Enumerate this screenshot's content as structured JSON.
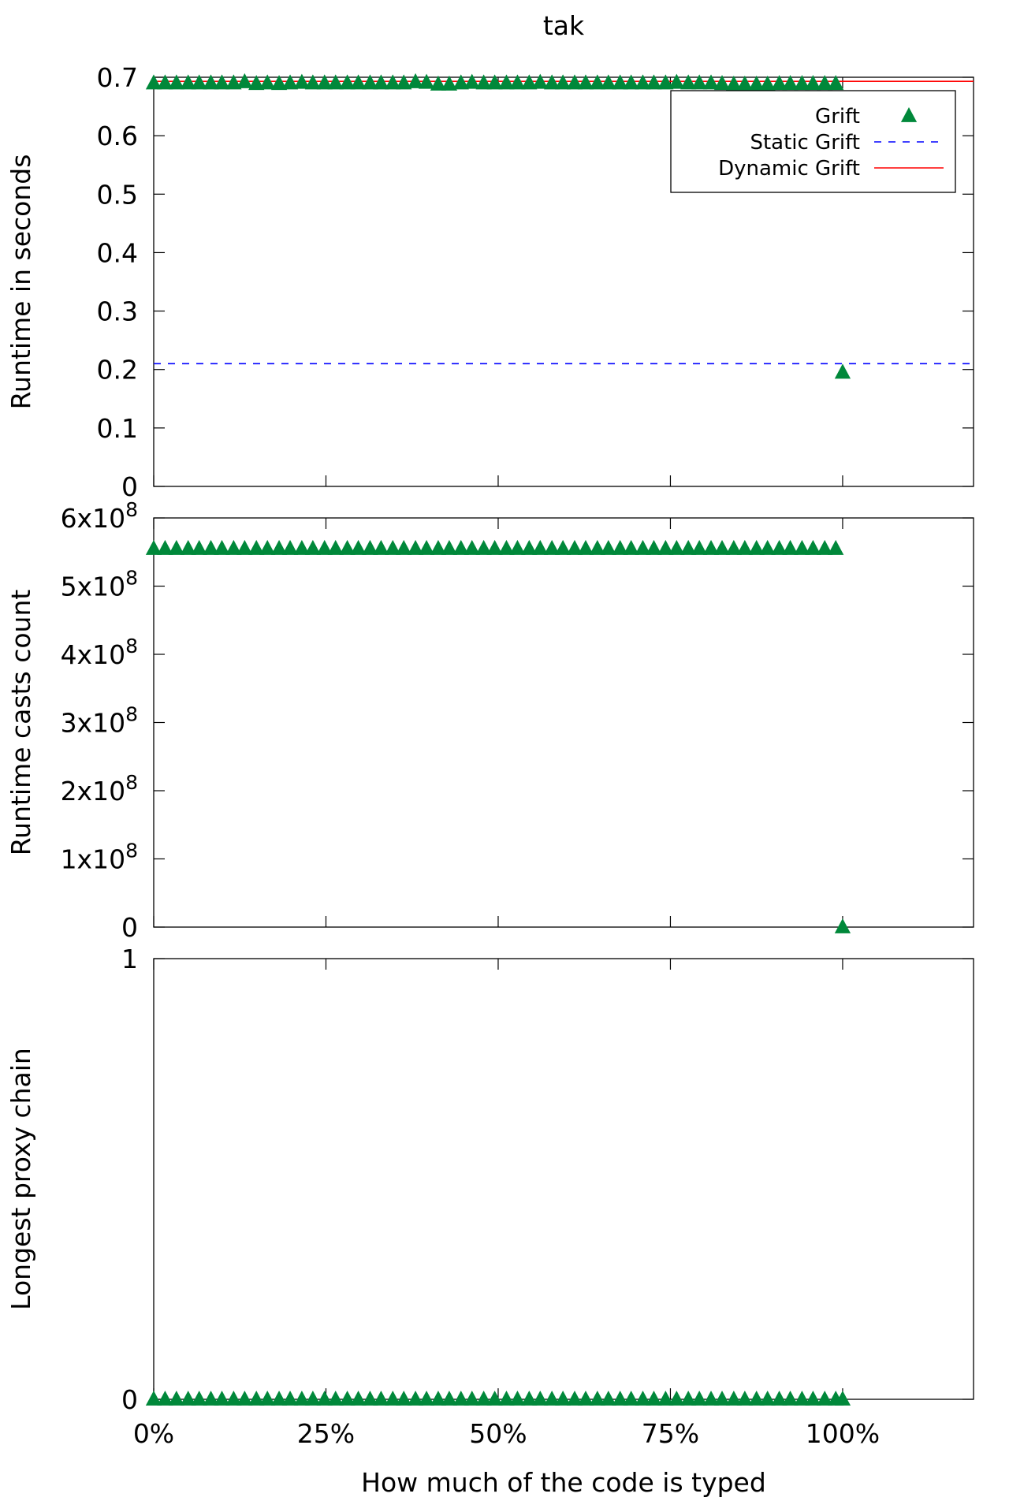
{
  "title": "tak",
  "xlabel": "How much of the code is typed",
  "colors": {
    "grift": "#00883a",
    "static": "#0000ff",
    "dynamic": "#ff0000"
  },
  "chart_data": [
    {
      "type": "scatter",
      "panel": "top",
      "title": "tak",
      "ylabel": "Runtime in seconds",
      "xlabel": "",
      "xlim": [
        0,
        1.19
      ],
      "ylim": [
        0,
        0.7
      ],
      "x_ticks": [
        "0%",
        "25%",
        "50%",
        "75%",
        "100%"
      ],
      "y_ticks": [
        {
          "value": 0,
          "label": "0"
        },
        {
          "value": 0.1,
          "label": "0.1"
        },
        {
          "value": 0.2,
          "label": "0.2"
        },
        {
          "value": 0.3,
          "label": "0.3"
        },
        {
          "value": 0.4,
          "label": "0.4"
        },
        {
          "value": 0.5,
          "label": "0.5"
        },
        {
          "value": 0.6,
          "label": "0.6"
        },
        {
          "value": 0.7,
          "label": "0.7"
        }
      ],
      "legend": {
        "position": "top-right",
        "entries": [
          {
            "label": "Grift",
            "style": "triangle"
          },
          {
            "label": "Static Grift",
            "style": "dashed"
          },
          {
            "label": "Dynamic Grift",
            "style": "solid"
          }
        ]
      },
      "series": [
        {
          "name": "Grift",
          "x": [
            0,
            0.0165,
            0.033,
            0.05,
            0.066,
            0.083,
            0.099,
            0.116,
            0.132,
            0.149,
            0.165,
            0.182,
            0.198,
            0.215,
            0.231,
            0.248,
            0.264,
            0.281,
            0.297,
            0.314,
            0.33,
            0.347,
            0.363,
            0.38,
            0.396,
            0.413,
            0.429,
            0.446,
            0.462,
            0.479,
            0.495,
            0.512,
            0.528,
            0.545,
            0.561,
            0.578,
            0.594,
            0.611,
            0.627,
            0.644,
            0.66,
            0.677,
            0.693,
            0.71,
            0.726,
            0.743,
            0.759,
            0.776,
            0.792,
            0.809,
            0.825,
            0.842,
            0.858,
            0.875,
            0.891,
            0.908,
            0.924,
            0.941,
            0.957,
            0.974,
            0.99,
            1.0
          ],
          "values": [
            0.69,
            0.69,
            0.69,
            0.69,
            0.69,
            0.69,
            0.69,
            0.69,
            0.692,
            0.689,
            0.69,
            0.689,
            0.69,
            0.691,
            0.69,
            0.69,
            0.69,
            0.69,
            0.69,
            0.69,
            0.69,
            0.69,
            0.69,
            0.692,
            0.691,
            0.688,
            0.688,
            0.69,
            0.691,
            0.69,
            0.69,
            0.69,
            0.69,
            0.69,
            0.691,
            0.69,
            0.69,
            0.69,
            0.69,
            0.69,
            0.69,
            0.69,
            0.69,
            0.69,
            0.69,
            0.69,
            0.691,
            0.69,
            0.69,
            0.69,
            0.689,
            0.688,
            0.688,
            0.688,
            0.688,
            0.689,
            0.689,
            0.689,
            0.689,
            0.689,
            0.689,
            0.195
          ]
        },
        {
          "name": "Static Grift",
          "constant": 0.21
        },
        {
          "name": "Dynamic Grift",
          "constant": 0.693
        }
      ]
    },
    {
      "type": "scatter",
      "panel": "middle",
      "ylabel": "Runtime casts count",
      "xlim": [
        0,
        1.19
      ],
      "ylim": [
        0,
        600000000
      ],
      "y_ticks": [
        {
          "value": 0,
          "label": "0"
        },
        {
          "value": 100000000,
          "label": "1x10",
          "exp": "8"
        },
        {
          "value": 200000000,
          "label": "2x10",
          "exp": "8"
        },
        {
          "value": 300000000,
          "label": "3x10",
          "exp": "8"
        },
        {
          "value": 400000000,
          "label": "4x10",
          "exp": "8"
        },
        {
          "value": 500000000,
          "label": "5x10",
          "exp": "8"
        },
        {
          "value": 600000000,
          "label": "6x10",
          "exp": "8"
        }
      ],
      "series": [
        {
          "name": "Grift",
          "x_from_top_panel": true,
          "values_constant": 555000000,
          "last_value": 0
        }
      ]
    },
    {
      "type": "scatter",
      "panel": "bottom",
      "ylabel": "Longest proxy chain",
      "xlim": [
        0,
        1.19
      ],
      "ylim": [
        0,
        1
      ],
      "y_ticks": [
        {
          "value": 0,
          "label": "0"
        },
        {
          "value": 1,
          "label": "1"
        }
      ],
      "series": [
        {
          "name": "Grift",
          "x_from_top_panel": true,
          "values_constant": 0,
          "last_value": 0
        }
      ]
    }
  ]
}
